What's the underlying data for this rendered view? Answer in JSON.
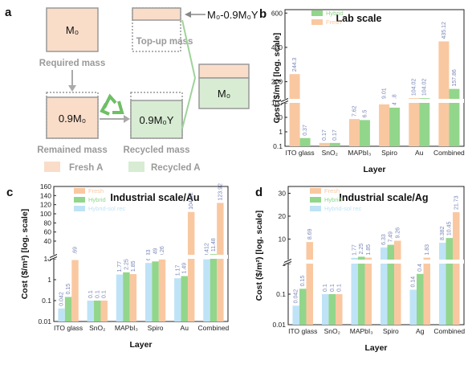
{
  "panel_a": {
    "letter": "a",
    "required_box": "M₀",
    "required_caption": "Required mass",
    "topup_caption": "Top-up mass",
    "topup_formula": "M₀-0.9M₀Y",
    "remained_box": "0.9M₀",
    "remained_caption": "Remained mass",
    "recycled_box": "0.9M₀Y",
    "recycled_caption": "Recycled mass",
    "result_box": "M₀",
    "legend_fresh": "Fresh A",
    "legend_recycled": "Recycled A",
    "recycle_icon": "recycle-icon",
    "colors": {
      "fresh": "#f9ddc9",
      "recycled": "#d7ecd3",
      "border": "#999999",
      "green_line": "#9fd39a"
    }
  },
  "chart_data": [
    {
      "id": "b",
      "letter": "b",
      "type": "bar",
      "title": "Lab scale",
      "xlabel": "Layer",
      "ylabel": "Cost ($/m²) [log. scale]",
      "categories": [
        "ITO glass",
        "SnO₂",
        "MAPbI₃",
        "Spiro",
        "Au",
        "Combined"
      ],
      "series": [
        {
          "name": "Fresh",
          "color": "#f9c8a1",
          "values": [
            244.3,
            0.17,
            7.62,
            79.01,
            104.02,
            435.12
          ],
          "labels": [
            "244.3",
            "0.17",
            "7.62",
            "79.01",
            "104.02",
            "435.12"
          ]
        },
        {
          "name": "Hybrid",
          "color": "#92d68b",
          "values": [
            0.37,
            0.17,
            6.5,
            46.8,
            104.02,
            157.86
          ],
          "labels": [
            "0.37",
            "0.17",
            "6.5",
            "46.8",
            "104.02",
            "157.86"
          ]
        }
      ],
      "y_axis_lower": {
        "scale": "log",
        "range": [
          0.1,
          100
        ],
        "ticks": [
          "0.1",
          "1",
          "10",
          "100"
        ]
      },
      "y_axis_upper": {
        "scale": "linear",
        "range": [
          100,
          620
        ],
        "ticks": [
          "200",
          "400",
          "600"
        ]
      },
      "legend": "top-left"
    },
    {
      "id": "c",
      "letter": "c",
      "type": "bar",
      "title": "Industrial scale/Au",
      "xlabel": "Layer",
      "ylabel": "Cost ($/m²) [log. scale]",
      "categories": [
        "ITO glass",
        "SnO₂",
        "MAPbI₃",
        "Spiro",
        "Au",
        "Combined"
      ],
      "series": [
        {
          "name": "Hybrid-sol rec",
          "color": "#bfe3f6",
          "values": [
            0.042,
            0.1,
            1.77,
            6.33,
            1.17,
            9.412
          ],
          "labels": [
            "0.042",
            "0.1",
            "1.77",
            "6.33",
            "1.17",
            "9.412"
          ]
        },
        {
          "name": "Hybrid",
          "color": "#92d68b",
          "values": [
            0.15,
            0.1,
            2.25,
            7.49,
            1.49,
            11.48
          ],
          "labels": [
            "0.15",
            "0.1",
            "2.25",
            "7.49",
            "1.49",
            "11.48"
          ]
        },
        {
          "name": "Fresh",
          "color": "#f9c8a1",
          "values": [
            8.69,
            0.1,
            1.85,
            9.26,
            104.02,
            123.92
          ],
          "labels": [
            "8.69",
            "0.1",
            "1.85",
            "9.26",
            "104.02",
            "123.92"
          ]
        }
      ],
      "y_axis_lower": {
        "scale": "log",
        "range": [
          0.01,
          10
        ],
        "ticks": [
          "0.01",
          "0.1",
          "1",
          "10"
        ]
      },
      "y_axis_upper": {
        "scale": "linear",
        "range": [
          10,
          160
        ],
        "ticks": [
          "40",
          "60",
          "80",
          "100",
          "120",
          "140",
          "160"
        ]
      },
      "legend": "top-left"
    },
    {
      "id": "d",
      "letter": "d",
      "type": "bar",
      "title": "Industrial scale/Ag",
      "xlabel": "Layer",
      "ylabel": "Cost ($/m²) [log. scale]",
      "categories": [
        "ITO glass",
        "SnO₂",
        "MAPbI₃",
        "Spiro",
        "Ag",
        "Combined"
      ],
      "series": [
        {
          "name": "Hybrid-sol rec",
          "color": "#bfe3f6",
          "values": [
            0.042,
            0.1,
            1.77,
            6.33,
            0.14,
            8.382
          ],
          "labels": [
            "0.042",
            "0.1",
            "1.77",
            "6.33",
            "0.14",
            "8.382"
          ]
        },
        {
          "name": "Hybrid",
          "color": "#92d68b",
          "values": [
            0.15,
            0.1,
            2.25,
            7.49,
            0.46,
            10.45
          ],
          "labels": [
            "0.15",
            "0.1",
            "2.25",
            "7.49",
            "0.46",
            "10.45"
          ]
        },
        {
          "name": "Fresh",
          "color": "#f9c8a1",
          "values": [
            8.69,
            0.1,
            1.85,
            9.26,
            1.83,
            21.73
          ],
          "labels": [
            "8.69",
            "0.1",
            "1.85",
            "9.26",
            "1.83",
            "21.73"
          ]
        }
      ],
      "y_axis_lower": {
        "scale": "log",
        "range": [
          0.01,
          1
        ],
        "ticks": [
          "0.01",
          "0.1",
          "1"
        ]
      },
      "y_axis_upper": {
        "scale": "linear",
        "range": [
          1,
          33
        ],
        "ticks": [
          "10",
          "20",
          "30"
        ]
      },
      "legend": "top-left"
    }
  ]
}
